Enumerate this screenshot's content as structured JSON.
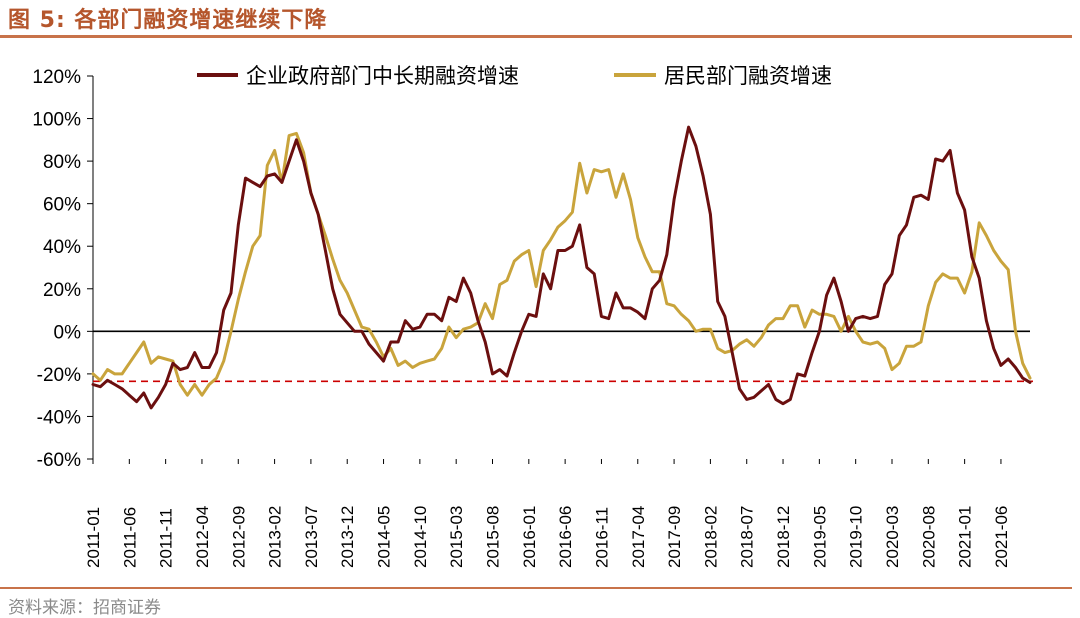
{
  "header": {
    "title": "图 5:  各部门融资增速继续下降"
  },
  "footer": {
    "source": "资料来源：招商证券"
  },
  "colors": {
    "corporate": "#6b0f0f",
    "household": "#c9a43c",
    "reference": "#cc0000",
    "accent": "#c8734a"
  },
  "chart_data": {
    "type": "line",
    "title": "各部门融资增速继续下降",
    "xlabel": "",
    "ylabel": "",
    "ylim": [
      -60,
      120
    ],
    "yticks": [
      -60,
      -40,
      -20,
      0,
      20,
      40,
      60,
      80,
      100,
      120
    ],
    "ytick_labels": [
      "-60%",
      "-40%",
      "-20%",
      "0%",
      "20%",
      "40%",
      "60%",
      "80%",
      "100%",
      "120%"
    ],
    "xtick_labels": [
      "2011-01",
      "2011-06",
      "2011-11",
      "2012-04",
      "2012-09",
      "2013-02",
      "2013-07",
      "2013-12",
      "2014-05",
      "2014-10",
      "2015-03",
      "2015-08",
      "2016-01",
      "2016-06",
      "2016-11",
      "2017-04",
      "2017-09",
      "2018-02",
      "2018-07",
      "2018-12",
      "2019-05",
      "2019-10",
      "2020-03",
      "2020-08",
      "2021-01",
      "2021-06"
    ],
    "reference_line": -23.5,
    "legend_position": "top",
    "series": [
      {
        "name": "企业政府部门中长期融资增速",
        "points": [
          [
            0,
            -25
          ],
          [
            1,
            -26
          ],
          [
            2,
            -23
          ],
          [
            3,
            -25
          ],
          [
            4,
            -27
          ],
          [
            5,
            -30
          ],
          [
            6,
            -33
          ],
          [
            7,
            -29
          ],
          [
            8,
            -36
          ],
          [
            9,
            -31
          ],
          [
            10,
            -25
          ],
          [
            11,
            -15
          ],
          [
            12,
            -18
          ],
          [
            13,
            -17
          ],
          [
            14,
            -10
          ],
          [
            15,
            -17
          ],
          [
            16,
            -17
          ],
          [
            17,
            -10
          ],
          [
            18,
            10
          ],
          [
            19,
            18
          ],
          [
            20,
            50
          ],
          [
            21,
            72
          ],
          [
            22,
            70
          ],
          [
            23,
            68
          ],
          [
            24,
            73
          ],
          [
            25,
            74
          ],
          [
            26,
            70
          ],
          [
            27,
            80
          ],
          [
            28,
            90
          ],
          [
            29,
            80
          ],
          [
            30,
            65
          ],
          [
            31,
            55
          ],
          [
            32,
            38
          ],
          [
            33,
            20
          ],
          [
            34,
            8
          ],
          [
            35,
            4
          ],
          [
            36,
            0
          ],
          [
            37,
            0
          ],
          [
            38,
            -6
          ],
          [
            39,
            -10
          ],
          [
            40,
            -14
          ],
          [
            41,
            -5
          ],
          [
            42,
            -5
          ],
          [
            43,
            5
          ],
          [
            44,
            1
          ],
          [
            45,
            2
          ],
          [
            46,
            8
          ],
          [
            47,
            8
          ],
          [
            48,
            5
          ],
          [
            49,
            16
          ],
          [
            50,
            14
          ],
          [
            51,
            25
          ],
          [
            52,
            18
          ],
          [
            53,
            5
          ],
          [
            54,
            -5
          ],
          [
            55,
            -20
          ],
          [
            56,
            -18
          ],
          [
            57,
            -21
          ],
          [
            58,
            -10
          ],
          [
            59,
            0
          ],
          [
            60,
            8
          ],
          [
            61,
            7
          ],
          [
            62,
            27
          ],
          [
            63,
            20
          ],
          [
            64,
            38
          ],
          [
            65,
            38
          ],
          [
            66,
            40
          ],
          [
            67,
            50
          ],
          [
            68,
            30
          ],
          [
            69,
            27
          ],
          [
            70,
            7
          ],
          [
            71,
            6
          ],
          [
            72,
            18
          ],
          [
            73,
            11
          ],
          [
            74,
            11
          ],
          [
            75,
            9
          ],
          [
            76,
            6
          ],
          [
            77,
            20
          ],
          [
            78,
            24
          ],
          [
            79,
            36
          ],
          [
            80,
            62
          ],
          [
            81,
            80
          ],
          [
            82,
            96
          ],
          [
            83,
            87
          ],
          [
            84,
            73
          ],
          [
            85,
            55
          ],
          [
            86,
            14
          ],
          [
            87,
            7
          ],
          [
            88,
            -10
          ],
          [
            89,
            -27
          ],
          [
            90,
            -32
          ],
          [
            91,
            -31
          ],
          [
            92,
            -28
          ],
          [
            93,
            -25
          ],
          [
            94,
            -32
          ],
          [
            95,
            -34
          ],
          [
            96,
            -32
          ],
          [
            97,
            -20
          ],
          [
            98,
            -21
          ],
          [
            99,
            -10
          ],
          [
            100,
            0
          ],
          [
            101,
            17
          ],
          [
            102,
            25
          ],
          [
            103,
            14
          ],
          [
            104,
            0
          ],
          [
            105,
            6
          ],
          [
            106,
            7
          ],
          [
            107,
            6
          ],
          [
            108,
            7
          ],
          [
            109,
            22
          ],
          [
            110,
            27
          ],
          [
            111,
            45
          ],
          [
            112,
            50
          ],
          [
            113,
            63
          ],
          [
            114,
            64
          ],
          [
            115,
            62
          ],
          [
            116,
            81
          ],
          [
            117,
            80
          ],
          [
            118,
            85
          ],
          [
            119,
            65
          ],
          [
            120,
            57
          ],
          [
            121,
            35
          ],
          [
            122,
            25
          ],
          [
            123,
            5
          ],
          [
            124,
            -8
          ],
          [
            125,
            -16
          ],
          [
            126,
            -13
          ],
          [
            127,
            -17
          ],
          [
            128,
            -22
          ],
          [
            129,
            -24
          ]
        ]
      },
      {
        "name": "居民部门融资增速",
        "points": [
          [
            0,
            -20
          ],
          [
            1,
            -23
          ],
          [
            2,
            -18
          ],
          [
            3,
            -20
          ],
          [
            4,
            -20
          ],
          [
            5,
            -15
          ],
          [
            6,
            -10
          ],
          [
            7,
            -5
          ],
          [
            8,
            -15
          ],
          [
            9,
            -12
          ],
          [
            10,
            -13
          ],
          [
            11,
            -14
          ],
          [
            12,
            -25
          ],
          [
            13,
            -30
          ],
          [
            14,
            -25
          ],
          [
            15,
            -30
          ],
          [
            16,
            -25
          ],
          [
            17,
            -22
          ],
          [
            18,
            -14
          ],
          [
            19,
            0
          ],
          [
            20,
            15
          ],
          [
            21,
            28
          ],
          [
            22,
            40
          ],
          [
            23,
            45
          ],
          [
            24,
            78
          ],
          [
            25,
            85
          ],
          [
            26,
            70
          ],
          [
            27,
            92
          ],
          [
            28,
            93
          ],
          [
            29,
            84
          ],
          [
            30,
            65
          ],
          [
            31,
            55
          ],
          [
            32,
            45
          ],
          [
            33,
            34
          ],
          [
            34,
            24
          ],
          [
            35,
            18
          ],
          [
            36,
            10
          ],
          [
            37,
            2
          ],
          [
            38,
            1
          ],
          [
            39,
            -5
          ],
          [
            40,
            -12
          ],
          [
            41,
            -8
          ],
          [
            42,
            -16
          ],
          [
            43,
            -14
          ],
          [
            44,
            -17
          ],
          [
            45,
            -15
          ],
          [
            46,
            -14
          ],
          [
            47,
            -13
          ],
          [
            48,
            -8
          ],
          [
            49,
            2
          ],
          [
            50,
            -3
          ],
          [
            51,
            1
          ],
          [
            52,
            2
          ],
          [
            53,
            4
          ],
          [
            54,
            13
          ],
          [
            55,
            6
          ],
          [
            56,
            22
          ],
          [
            57,
            24
          ],
          [
            58,
            33
          ],
          [
            59,
            36
          ],
          [
            60,
            38
          ],
          [
            61,
            21
          ],
          [
            62,
            38
          ],
          [
            63,
            43
          ],
          [
            64,
            49
          ],
          [
            65,
            52
          ],
          [
            66,
            56
          ],
          [
            67,
            79
          ],
          [
            68,
            65
          ],
          [
            69,
            76
          ],
          [
            70,
            75
          ],
          [
            71,
            76
          ],
          [
            72,
            63
          ],
          [
            73,
            74
          ],
          [
            74,
            62
          ],
          [
            75,
            44
          ],
          [
            76,
            35
          ],
          [
            77,
            28
          ],
          [
            78,
            28
          ],
          [
            79,
            13
          ],
          [
            80,
            12
          ],
          [
            81,
            8
          ],
          [
            82,
            5
          ],
          [
            83,
            0
          ],
          [
            84,
            1
          ],
          [
            85,
            1
          ],
          [
            86,
            -8
          ],
          [
            87,
            -10
          ],
          [
            88,
            -9
          ],
          [
            89,
            -6
          ],
          [
            90,
            -4
          ],
          [
            91,
            -7
          ],
          [
            92,
            -3
          ],
          [
            93,
            3
          ],
          [
            94,
            6
          ],
          [
            95,
            6
          ],
          [
            96,
            12
          ],
          [
            97,
            12
          ],
          [
            98,
            2
          ],
          [
            99,
            10
          ],
          [
            100,
            8
          ],
          [
            101,
            8
          ],
          [
            102,
            7
          ],
          [
            103,
            0
          ],
          [
            104,
            7
          ],
          [
            105,
            0
          ],
          [
            106,
            -5
          ],
          [
            107,
            -6
          ],
          [
            108,
            -5
          ],
          [
            109,
            -8
          ],
          [
            110,
            -18
          ],
          [
            111,
            -15
          ],
          [
            112,
            -7
          ],
          [
            113,
            -7
          ],
          [
            114,
            -5
          ],
          [
            115,
            12
          ],
          [
            116,
            23
          ],
          [
            117,
            27
          ],
          [
            118,
            25
          ],
          [
            119,
            25
          ],
          [
            120,
            18
          ],
          [
            121,
            28
          ],
          [
            122,
            51
          ],
          [
            123,
            45
          ],
          [
            124,
            38
          ],
          [
            125,
            33
          ],
          [
            126,
            29
          ],
          [
            127,
            0
          ],
          [
            128,
            -15
          ],
          [
            129,
            -22
          ]
        ]
      }
    ]
  }
}
